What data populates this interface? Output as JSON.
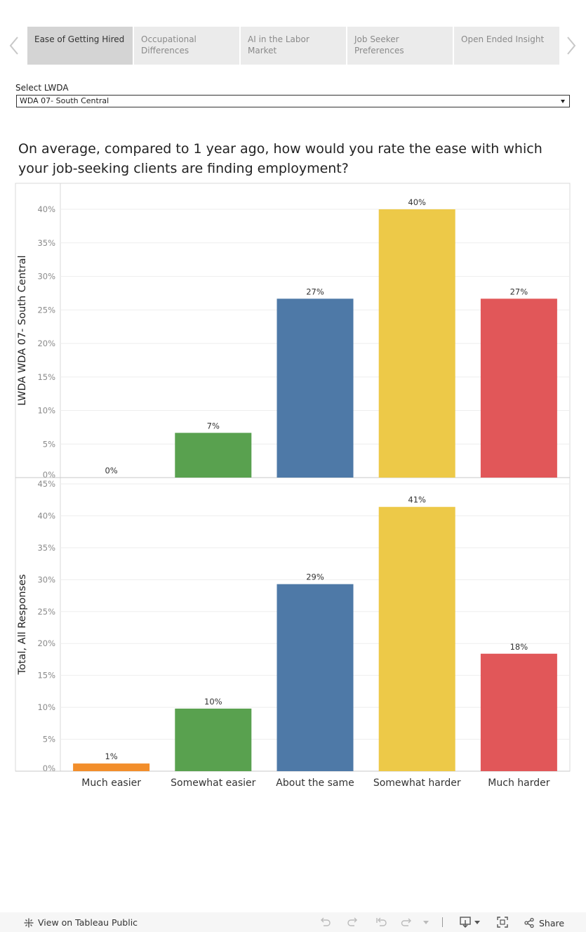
{
  "tabs": [
    {
      "label": "Ease of Getting Hired",
      "active": true
    },
    {
      "label": "Occupational Differences",
      "active": false
    },
    {
      "label": "AI in the Labor Market",
      "active": false
    },
    {
      "label": "Job Seeker Preferences",
      "active": false
    },
    {
      "label": "Open Ended Insight",
      "active": false
    }
  ],
  "filter": {
    "label": "Select LWDA",
    "value": "WDA 07- South Central"
  },
  "title": "On average, compared to 1 year ago, how would you rate the ease with which your job-seeking clients are finding employment?",
  "chart_data": {
    "type": "bar",
    "categories": [
      "Much easier",
      "Somewhat easier",
      "About the same",
      "Somewhat harder",
      "Much harder"
    ],
    "colors": [
      "#f28e2b",
      "#59a14f",
      "#4e79a7",
      "#edc948",
      "#e15759"
    ],
    "panels": [
      {
        "label": "LWDA WDA 07- South Central",
        "values": [
          0,
          6.67,
          26.67,
          40,
          26.67
        ],
        "data_labels": [
          "0%",
          "7%",
          "27%",
          "40%",
          "27%"
        ],
        "ylim": [
          0,
          40
        ],
        "ticks": [
          "0%",
          "5%",
          "10%",
          "15%",
          "20%",
          "25%",
          "30%",
          "35%",
          "40%"
        ]
      },
      {
        "label": "Total, All Responses",
        "values": [
          1.2,
          9.8,
          29.3,
          41.4,
          18.4
        ],
        "data_labels": [
          "1%",
          "10%",
          "29%",
          "41%",
          "18%"
        ],
        "ylim": [
          0,
          45
        ],
        "ticks": [
          "0%",
          "5%",
          "10%",
          "15%",
          "20%",
          "25%",
          "30%",
          "35%",
          "40%",
          "45%"
        ]
      }
    ]
  },
  "footer": {
    "view_label": "View on Tableau Public",
    "share_label": "Share"
  }
}
